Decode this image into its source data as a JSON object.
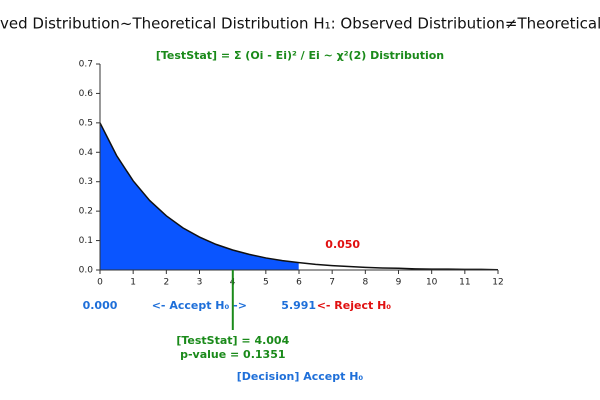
{
  "chart_data": {
    "type": "distribution",
    "title": "ved Distribution~Theoretical Distribution H₁: Observed Distribution≠Theoretical Di",
    "subtitle": "[TestStat] = Σ (Oi - Ei)² / Ei ~ χ²(2) Distribution",
    "x": [
      0,
      0.5,
      1,
      1.5,
      2,
      2.5,
      3,
      3.5,
      4,
      4.5,
      5,
      5.5,
      6,
      6.5,
      7,
      7.5,
      8,
      8.5,
      9,
      9.5,
      10,
      10.5,
      11,
      11.5,
      12
    ],
    "values": [
      0.5,
      0.389,
      0.303,
      0.236,
      0.184,
      0.143,
      0.112,
      0.087,
      0.068,
      0.053,
      0.041,
      0.032,
      0.025,
      0.019,
      0.015,
      0.012,
      0.009,
      0.007,
      0.006,
      0.004,
      0.003,
      0.003,
      0.002,
      0.002,
      0.001
    ],
    "xlim": [
      0,
      12
    ],
    "ylim": [
      0,
      0.7
    ],
    "xticks": [
      0,
      1,
      2,
      3,
      4,
      5,
      6,
      7,
      8,
      9,
      10,
      11,
      12
    ],
    "yticks": [
      {
        "value": 0,
        "label": "0.0"
      },
      0.1,
      0.2,
      0.3,
      0.4,
      0.5,
      0.6,
      0.7
    ],
    "color": "#0a55ff",
    "lower_bound": {
      "value": 0,
      "label": "0.000"
    },
    "critical": {
      "value": 5.991,
      "label": "5.991"
    },
    "alpha": {
      "value": 0.05,
      "label": "0.050"
    },
    "accept_text": "<- Accept H₀ ->",
    "reject_text": "<- Reject H₀",
    "test_stat": {
      "value": 4.004,
      "label": "[TestStat] = 4.004"
    },
    "p_value_text": "p-value = 0.1351",
    "decision": "[Decision] Accept H₀"
  }
}
